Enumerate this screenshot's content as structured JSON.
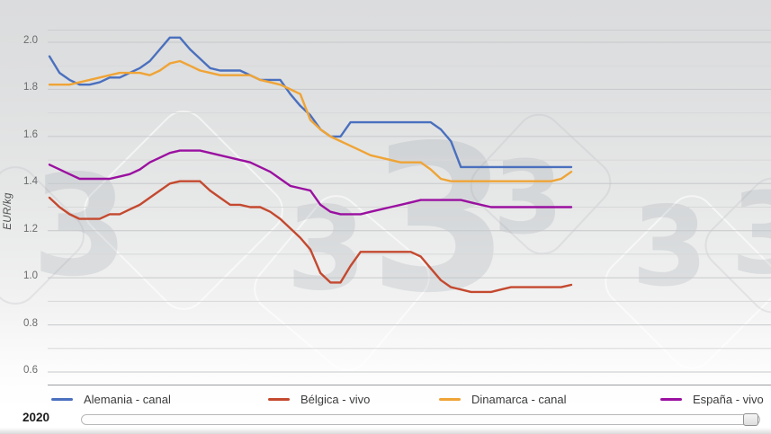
{
  "watermark": {
    "glyph": "3"
  },
  "axis": {
    "y_label": "EUR/kg",
    "x_year": "2020"
  },
  "chart_data": {
    "type": "line",
    "title": "",
    "xlabel": "2020",
    "ylabel": "EUR/kg",
    "x_unit": "week",
    "x_count": 53,
    "ylim": [
      0.55,
      2.05
    ],
    "y_major_ticks": [
      2.0,
      1.8,
      1.6,
      1.4,
      1.2,
      1.0,
      0.8,
      0.6
    ],
    "y_minor_ticks": [
      1.9,
      1.7,
      1.5,
      1.3,
      1.1,
      0.9,
      0.7
    ],
    "grid": true,
    "legend_position": "bottom",
    "note_colors": {
      "axis_text": "#6a6b6c",
      "grid_major": "#c6c8ca",
      "grid_minor": "#d7d8d9"
    },
    "series": [
      {
        "name": "Alemania - canal",
        "color": "#4a70be",
        "values": [
          1.94,
          1.87,
          1.84,
          1.82,
          1.82,
          1.83,
          1.85,
          1.85,
          1.87,
          1.89,
          1.92,
          1.97,
          2.02,
          2.02,
          1.97,
          1.93,
          1.89,
          1.88,
          1.88,
          1.88,
          1.86,
          1.84,
          1.84,
          1.84,
          1.78,
          1.73,
          1.69,
          1.63,
          1.6,
          1.6,
          1.66,
          1.66,
          1.66,
          1.66,
          1.66,
          1.66,
          1.66,
          1.66,
          1.66,
          1.63,
          1.58,
          1.47,
          1.47,
          1.47,
          1.47,
          1.47,
          1.47,
          1.47,
          1.47,
          1.47,
          1.47,
          1.47,
          1.47
        ]
      },
      {
        "name": "Bélgica - vivo",
        "color": "#c4492f",
        "values": [
          1.34,
          1.3,
          1.27,
          1.25,
          1.25,
          1.25,
          1.27,
          1.27,
          1.29,
          1.31,
          1.34,
          1.37,
          1.4,
          1.41,
          1.41,
          1.41,
          1.37,
          1.34,
          1.31,
          1.31,
          1.3,
          1.3,
          1.28,
          1.25,
          1.21,
          1.17,
          1.12,
          1.02,
          0.98,
          0.98,
          1.05,
          1.11,
          1.11,
          1.11,
          1.11,
          1.11,
          1.11,
          1.09,
          1.04,
          0.99,
          0.96,
          0.95,
          0.94,
          0.94,
          0.94,
          0.95,
          0.96,
          0.96,
          0.96,
          0.96,
          0.96,
          0.96,
          0.97
        ]
      },
      {
        "name": "Dinamarca - canal",
        "color": "#efa436",
        "values": [
          1.82,
          1.82,
          1.82,
          1.83,
          1.84,
          1.85,
          1.86,
          1.87,
          1.87,
          1.87,
          1.86,
          1.88,
          1.91,
          1.92,
          1.9,
          1.88,
          1.87,
          1.86,
          1.86,
          1.86,
          1.86,
          1.84,
          1.83,
          1.82,
          1.8,
          1.78,
          1.67,
          1.63,
          1.6,
          1.58,
          1.56,
          1.54,
          1.52,
          1.51,
          1.5,
          1.49,
          1.49,
          1.49,
          1.46,
          1.42,
          1.41,
          1.41,
          1.41,
          1.41,
          1.41,
          1.41,
          1.41,
          1.41,
          1.41,
          1.41,
          1.41,
          1.42,
          1.45
        ]
      },
      {
        "name": "España - vivo",
        "color": "#9a10a0",
        "values": [
          1.48,
          1.46,
          1.44,
          1.42,
          1.42,
          1.42,
          1.42,
          1.43,
          1.44,
          1.46,
          1.49,
          1.51,
          1.53,
          1.54,
          1.54,
          1.54,
          1.53,
          1.52,
          1.51,
          1.5,
          1.49,
          1.47,
          1.45,
          1.42,
          1.39,
          1.38,
          1.37,
          1.31,
          1.28,
          1.27,
          1.27,
          1.27,
          1.28,
          1.29,
          1.3,
          1.31,
          1.32,
          1.33,
          1.33,
          1.33,
          1.33,
          1.33,
          1.32,
          1.31,
          1.3,
          1.3,
          1.3,
          1.3,
          1.3,
          1.3,
          1.3,
          1.3,
          1.3
        ]
      }
    ]
  }
}
